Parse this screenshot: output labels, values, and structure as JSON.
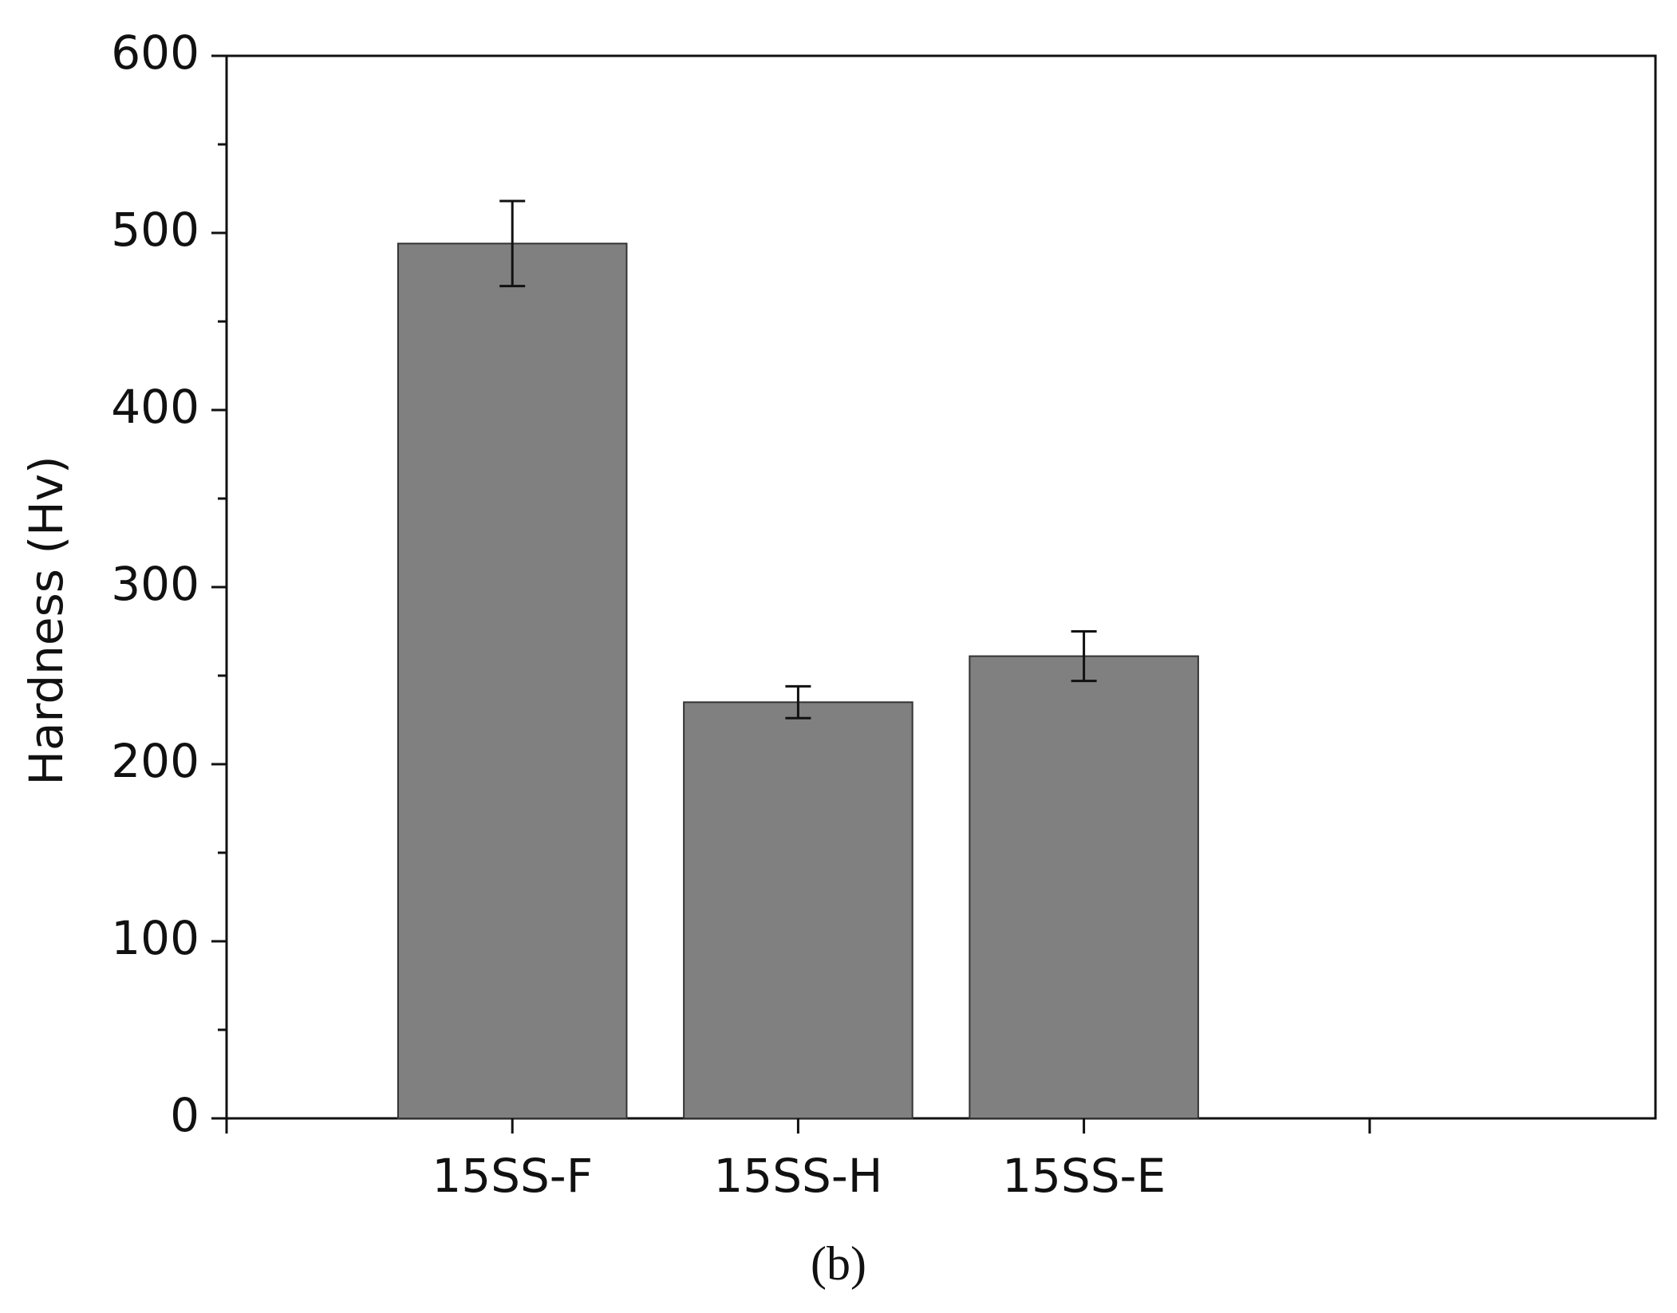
{
  "chart_data": {
    "type": "bar",
    "categories": [
      "15SS-F",
      "15SS-H",
      "15SS-E"
    ],
    "values": [
      494,
      235,
      261
    ],
    "errors": [
      24,
      9,
      14
    ],
    "color": "#808080",
    "ylabel": "Hardness (Hv)",
    "ylim": [
      0,
      600
    ],
    "yticks": [
      0,
      100,
      200,
      300,
      400,
      500,
      600
    ],
    "minor_yticks": [
      50,
      150,
      250,
      350,
      450,
      550
    ],
    "caption": "(b)"
  }
}
